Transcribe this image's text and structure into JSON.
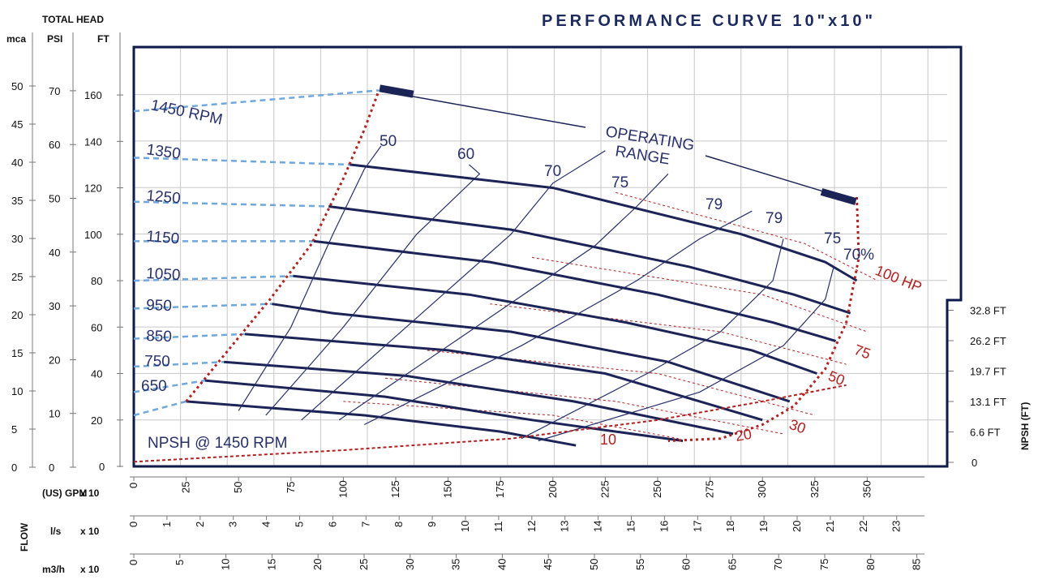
{
  "title": "PERFORMANCE CURVE   10\"x10\"",
  "head_axis": {
    "title": "TOTAL HEAD",
    "units": {
      "mca": "mca",
      "psi": "PSI",
      "ft": "FT"
    },
    "mca_ticks": [
      "0",
      "5",
      "10",
      "15",
      "20",
      "25",
      "30",
      "35",
      "40",
      "45",
      "50"
    ],
    "psi_ticks": [
      "0",
      "10",
      "20",
      "30",
      "40",
      "50",
      "60",
      "70"
    ],
    "ft_ticks": [
      "0",
      "20",
      "40",
      "60",
      "80",
      "100",
      "120",
      "140",
      "160"
    ]
  },
  "npsh_axis": {
    "title": "NPSH (FT)",
    "ticks": [
      "0",
      "6.6 FT",
      "13.1 FT",
      "19.7 FT",
      "26.2 FT",
      "32.8 FT"
    ]
  },
  "flow_axis": {
    "group_label": "FLOW",
    "gpm_label": "(US) GPM",
    "ls_label": "l/s",
    "m3h_label": "m3/h",
    "multiplier": "x 10",
    "gpm_ticks": [
      "0",
      "25",
      "50",
      "75",
      "100",
      "125",
      "150",
      "175",
      "200",
      "225",
      "250",
      "275",
      "300",
      "325",
      "350"
    ],
    "ls_ticks": [
      "0",
      "1",
      "2",
      "3",
      "4",
      "5",
      "6",
      "7",
      "8",
      "9",
      "10",
      "11",
      "12",
      "13",
      "14",
      "15",
      "16",
      "17",
      "18",
      "19",
      "20",
      "21",
      "22",
      "23"
    ],
    "m3h_ticks": [
      "0",
      "5",
      "10",
      "15",
      "20",
      "25",
      "30",
      "35",
      "40",
      "45",
      "50",
      "55",
      "60",
      "65",
      "70",
      "75",
      "80",
      "85"
    ]
  },
  "annotations": {
    "operating_range_1": "OPERATING",
    "operating_range_2": "RANGE",
    "npsh_curve_label": "NPSH @ 1450 RPM"
  },
  "colors": {
    "head_curve": "#1c2457",
    "efficiency_curve": "#27306a",
    "power_curve": "#b32020",
    "low_flow_extension": "#6fa8dc",
    "frame": "#0d1a4a"
  },
  "chart_data": {
    "type": "line",
    "x_unit": "GPM x 10",
    "y_unit": "FT",
    "xlim": [
      0,
      375
    ],
    "ylim": [
      0,
      180
    ],
    "grid": true,
    "head_curves": [
      {
        "name": "1450 RPM",
        "dashed_from": [
          0,
          153
        ],
        "points": [
          [
            117,
            162
          ]
        ]
      },
      {
        "name": "1350",
        "dashed_from": [
          0,
          133
        ],
        "points": [
          [
            103,
            130
          ],
          [
            200,
            120
          ],
          [
            290,
            100
          ],
          [
            330,
            88
          ],
          [
            345,
            80
          ]
        ]
      },
      {
        "name": "1250",
        "dashed_from": [
          0,
          114
        ],
        "points": [
          [
            93,
            112
          ],
          [
            180,
            102
          ],
          [
            265,
            86
          ],
          [
            315,
            74
          ],
          [
            342,
            66
          ]
        ]
      },
      {
        "name": "1150",
        "dashed_from": [
          0,
          97
        ],
        "points": [
          [
            86,
            97
          ],
          [
            170,
            88
          ],
          [
            250,
            74
          ],
          [
            305,
            62
          ],
          [
            335,
            54
          ]
        ]
      },
      {
        "name": "1050",
        "dashed_from": [
          0,
          80
        ],
        "points": [
          [
            76,
            82
          ],
          [
            160,
            74
          ],
          [
            235,
            62
          ],
          [
            295,
            50
          ],
          [
            326,
            40
          ]
        ]
      },
      {
        "name": "950",
        "dashed_from": [
          0,
          68
        ],
        "points": [
          [
            66,
            70
          ],
          [
            95,
            66
          ],
          [
            180,
            58
          ],
          [
            255,
            45
          ],
          [
            313,
            28
          ]
        ]
      },
      {
        "name": "850",
        "dashed_from": [
          0,
          55
        ],
        "points": [
          [
            53,
            57
          ],
          [
            150,
            50
          ],
          [
            225,
            40
          ],
          [
            300,
            20
          ]
        ]
      },
      {
        "name": "750",
        "dashed_from": [
          0,
          43
        ],
        "points": [
          [
            43,
            45
          ],
          [
            130,
            39
          ],
          [
            210,
            28
          ],
          [
            286,
            14
          ]
        ]
      },
      {
        "name": "650",
        "dashed_from": [
          0,
          32
        ],
        "points": [
          [
            34,
            37
          ],
          [
            120,
            30
          ],
          [
            190,
            20
          ],
          [
            262,
            11
          ]
        ]
      },
      {
        "name": "",
        "dashed_from": [
          0,
          22
        ],
        "points": [
          [
            25,
            28
          ],
          [
            110,
            22
          ],
          [
            175,
            15
          ],
          [
            211,
            9
          ]
        ]
      }
    ],
    "efficiency_curves": [
      {
        "name": "50",
        "points": [
          [
            50,
            24
          ],
          [
            75,
            60
          ],
          [
            95,
            100
          ],
          [
            110,
            128
          ],
          [
            118,
            138
          ]
        ]
      },
      {
        "name": "60",
        "points": [
          [
            63,
            22
          ],
          [
            100,
            60
          ],
          [
            135,
            100
          ],
          [
            165,
            126
          ],
          [
            160,
            130
          ]
        ]
      },
      {
        "name": "70",
        "points": [
          [
            80,
            20
          ],
          [
            130,
            60
          ],
          [
            180,
            100
          ],
          [
            200,
            122
          ],
          [
            225,
            136
          ]
        ]
      },
      {
        "name": "75",
        "points": [
          [
            98,
            20
          ],
          [
            160,
            58
          ],
          [
            220,
            95
          ],
          [
            240,
            112
          ],
          [
            255,
            126
          ]
        ]
      },
      {
        "name": "79",
        "points": [
          [
            110,
            18
          ],
          [
            185,
            52
          ],
          [
            240,
            80
          ],
          [
            270,
            98
          ],
          [
            295,
            110
          ]
        ]
      },
      {
        "name": "79",
        "points": [
          [
            185,
            12
          ],
          [
            245,
            40
          ],
          [
            280,
            58
          ],
          [
            305,
            80
          ],
          [
            310,
            98
          ]
        ]
      },
      {
        "name": "75",
        "points": [
          [
            193,
            11
          ],
          [
            270,
            32
          ],
          [
            310,
            52
          ],
          [
            330,
            72
          ],
          [
            334,
            86
          ]
        ]
      }
    ],
    "power_curves": [
      {
        "name": "10",
        "points": [
          [
            100,
            28
          ],
          [
            200,
            22
          ],
          [
            260,
            12
          ]
        ]
      },
      {
        "name": "20",
        "points": [
          [
            120,
            38
          ],
          [
            230,
            28
          ],
          [
            310,
            14
          ]
        ]
      },
      {
        "name": "30",
        "points": [
          [
            140,
            50
          ],
          [
            250,
            40
          ],
          [
            325,
            22
          ]
        ]
      },
      {
        "name": "50",
        "points": [
          [
            170,
            70
          ],
          [
            280,
            58
          ],
          [
            340,
            44
          ]
        ]
      },
      {
        "name": "75",
        "points": [
          [
            190,
            90
          ],
          [
            300,
            74
          ],
          [
            350,
            58
          ]
        ]
      },
      {
        "name": "100 HP",
        "points": [
          [
            230,
            118
          ],
          [
            320,
            96
          ],
          [
            355,
            80
          ]
        ]
      }
    ],
    "power_labels": [
      "10",
      "20",
      "30",
      "50",
      "75",
      "100 HP",
      "70%"
    ],
    "npsh_curve": {
      "name": "NPSH @ 1450 RPM",
      "points": [
        [
          0,
          2
        ],
        [
          100,
          7
        ],
        [
          180,
          12
        ],
        [
          250,
          20
        ],
        [
          300,
          28
        ],
        [
          340,
          35
        ]
      ]
    }
  }
}
